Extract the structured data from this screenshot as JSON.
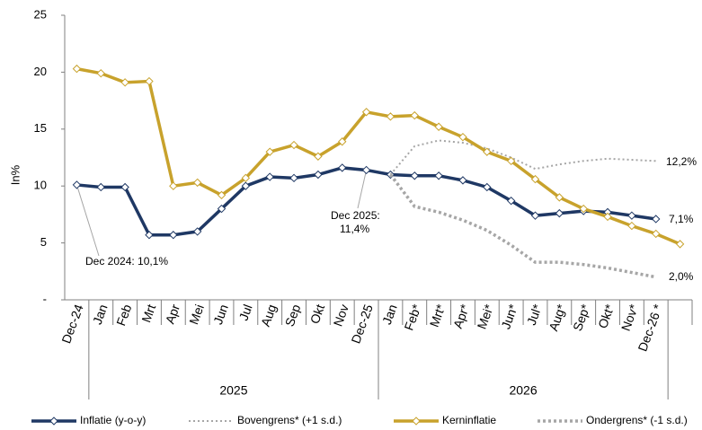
{
  "chart_data": {
    "type": "line",
    "y_label": "In%",
    "categories": [
      "Dec-24",
      "Jan",
      "Feb",
      "Mrt",
      "Apr",
      "Mei",
      "Jun",
      "Jul",
      "Aug",
      "Sep",
      "Okt",
      "Nov",
      "Dec-25",
      "Jan",
      "Feb*",
      "Mrt*",
      "Apr*",
      "Mei*",
      "Jun*",
      "Jul*",
      "Aug*",
      "Sep*",
      "Okt*",
      "Nov*",
      "Dec-26 *",
      null
    ],
    "years": [
      "2025",
      "2026"
    ],
    "ylim": [
      0,
      25
    ],
    "yticks": [
      {
        "value": 0,
        "label": "-"
      },
      5,
      10,
      15,
      20,
      25
    ],
    "series": [
      {
        "name": "Inflatie (y-o-y)",
        "color": "#1f3864",
        "style": "solid",
        "marker": "diamond",
        "values": [
          10.1,
          9.9,
          9.9,
          5.7,
          5.7,
          6.0,
          8.0,
          10.0,
          10.8,
          10.7,
          11.0,
          11.6,
          11.4,
          11.0,
          10.9,
          10.9,
          10.5,
          9.9,
          8.7,
          7.4,
          7.6,
          7.8,
          7.7,
          7.4,
          7.1,
          null
        ]
      },
      {
        "name": "Bovengrens* (+1 s.d.)",
        "color": "#a6a6a6",
        "style": "dotted-thin",
        "marker": null,
        "values": [
          null,
          null,
          null,
          null,
          null,
          null,
          null,
          null,
          null,
          null,
          null,
          null,
          null,
          11.0,
          13.5,
          14.0,
          13.8,
          13.3,
          12.5,
          11.5,
          11.9,
          12.2,
          12.4,
          12.3,
          12.2,
          null
        ]
      },
      {
        "name": "Kerninflatie",
        "color": "#c8a22c",
        "style": "solid",
        "marker": "diamond",
        "values": [
          20.3,
          19.9,
          19.1,
          19.2,
          10.0,
          10.3,
          9.2,
          10.7,
          13.0,
          13.6,
          12.6,
          13.9,
          16.5,
          16.1,
          16.2,
          15.2,
          14.3,
          13.0,
          12.2,
          10.6,
          9.0,
          8.0,
          7.3,
          6.5,
          5.8,
          4.9
        ]
      },
      {
        "name": "Ondergrens* (-1 s.d.)",
        "color": "#a6a6a6",
        "style": "dotted-thick",
        "marker": null,
        "values": [
          null,
          null,
          null,
          null,
          null,
          null,
          null,
          null,
          null,
          null,
          null,
          null,
          null,
          11.0,
          8.2,
          7.7,
          7.0,
          6.1,
          4.8,
          3.3,
          3.3,
          3.1,
          2.8,
          2.4,
          2.0,
          null
        ]
      }
    ],
    "annotations": [
      "Dec 2024: 10,1%",
      "Dec 2025:",
      "11,4%",
      "12,2%",
      "7,1%",
      "2,0%"
    ]
  }
}
